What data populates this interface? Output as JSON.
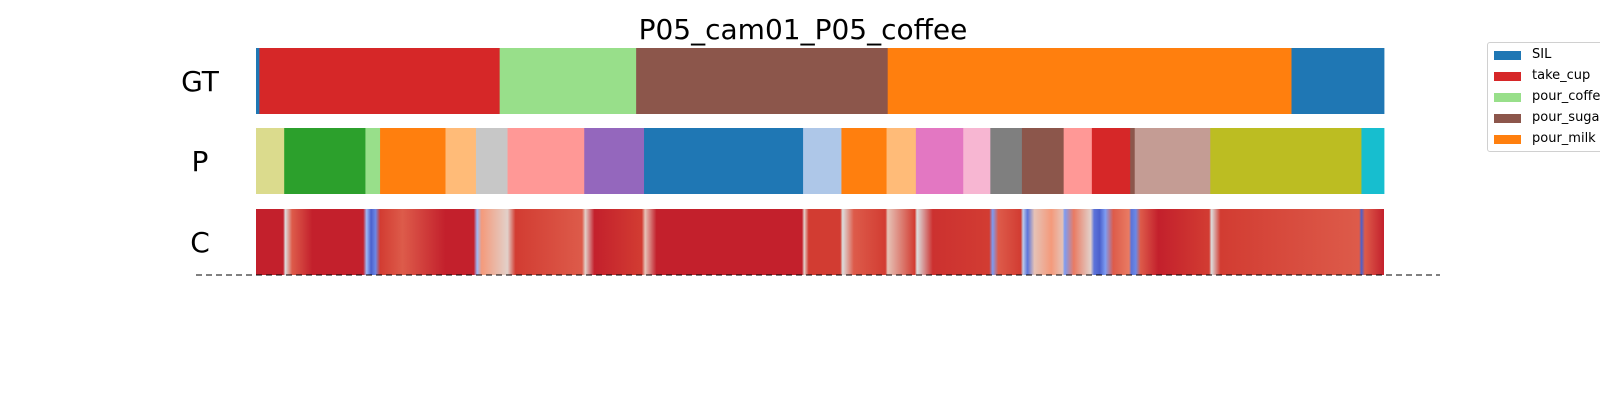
{
  "chart_data": {
    "type": "segmentation_timeline",
    "title": "P05_cam01_P05_coffee",
    "rows": [
      {
        "label": "GT",
        "segments": [
          {
            "start": 0.0,
            "end": 0.3,
            "color": "#1f77b4"
          },
          {
            "start": 0.3,
            "end": 21.6,
            "color": "#d62728"
          },
          {
            "start": 21.6,
            "end": 33.7,
            "color": "#98df8a"
          },
          {
            "start": 33.7,
            "end": 56.0,
            "color": "#8c564b"
          },
          {
            "start": 56.0,
            "end": 91.8,
            "color": "#ff7f0e"
          },
          {
            "start": 91.8,
            "end": 100.0,
            "color": "#1f77b4"
          }
        ]
      },
      {
        "label": "P",
        "segments": [
          {
            "start": 0.0,
            "end": 2.5,
            "color": "#dbdb8d"
          },
          {
            "start": 2.5,
            "end": 9.7,
            "color": "#2ca02c"
          },
          {
            "start": 9.7,
            "end": 11.0,
            "color": "#98df8a"
          },
          {
            "start": 11.0,
            "end": 16.8,
            "color": "#ff7f0e"
          },
          {
            "start": 16.8,
            "end": 19.5,
            "color": "#ffbb78"
          },
          {
            "start": 19.5,
            "end": 22.3,
            "color": "#c7c7c7"
          },
          {
            "start": 22.3,
            "end": 29.1,
            "color": "#ff9896"
          },
          {
            "start": 29.1,
            "end": 34.4,
            "color": "#9467bd"
          },
          {
            "start": 34.4,
            "end": 48.5,
            "color": "#1f77b4"
          },
          {
            "start": 48.5,
            "end": 51.9,
            "color": "#aec7e8"
          },
          {
            "start": 51.9,
            "end": 55.9,
            "color": "#ff7f0e"
          },
          {
            "start": 55.9,
            "end": 58.5,
            "color": "#ffbb78"
          },
          {
            "start": 58.5,
            "end": 62.7,
            "color": "#e377c2"
          },
          {
            "start": 62.7,
            "end": 65.1,
            "color": "#f7b6d2"
          },
          {
            "start": 65.1,
            "end": 67.9,
            "color": "#7f7f7f"
          },
          {
            "start": 67.9,
            "end": 71.6,
            "color": "#8c564b"
          },
          {
            "start": 71.6,
            "end": 74.1,
            "color": "#ff9896"
          },
          {
            "start": 74.1,
            "end": 77.5,
            "color": "#d62728"
          },
          {
            "start": 77.5,
            "end": 77.9,
            "color": "#8c564b"
          },
          {
            "start": 77.9,
            "end": 84.6,
            "color": "#c49c94"
          },
          {
            "start": 84.6,
            "end": 98.0,
            "color": "#bcbd22"
          },
          {
            "start": 98.0,
            "end": 100.0,
            "color": "#17becf"
          }
        ]
      },
      {
        "label": "C",
        "colormap": "coolwarm",
        "confidence": [
          {
            "t": 0.0,
            "v": 0.95
          },
          {
            "t": 2.4,
            "v": 0.95
          },
          {
            "t": 2.6,
            "v": 0.5
          },
          {
            "t": 3.2,
            "v": 0.85
          },
          {
            "t": 5.0,
            "v": 0.95
          },
          {
            "t": 9.5,
            "v": 0.95
          },
          {
            "t": 9.8,
            "v": 0.3
          },
          {
            "t": 10.2,
            "v": 0.05
          },
          {
            "t": 10.6,
            "v": 0.15
          },
          {
            "t": 11.0,
            "v": 0.9
          },
          {
            "t": 13.0,
            "v": 0.85
          },
          {
            "t": 16.8,
            "v": 0.95
          },
          {
            "t": 19.3,
            "v": 0.95
          },
          {
            "t": 19.6,
            "v": 0.3
          },
          {
            "t": 20.0,
            "v": 0.75
          },
          {
            "t": 22.3,
            "v": 0.55
          },
          {
            "t": 23.0,
            "v": 0.9
          },
          {
            "t": 28.9,
            "v": 0.85
          },
          {
            "t": 29.2,
            "v": 0.55
          },
          {
            "t": 30.0,
            "v": 0.95
          },
          {
            "t": 34.2,
            "v": 0.9
          },
          {
            "t": 34.5,
            "v": 0.6
          },
          {
            "t": 35.5,
            "v": 0.95
          },
          {
            "t": 48.4,
            "v": 0.95
          },
          {
            "t": 48.6,
            "v": 0.55
          },
          {
            "t": 49.0,
            "v": 0.9
          },
          {
            "t": 51.8,
            "v": 0.9
          },
          {
            "t": 52.0,
            "v": 0.5
          },
          {
            "t": 53.0,
            "v": 0.85
          },
          {
            "t": 55.8,
            "v": 0.9
          },
          {
            "t": 56.0,
            "v": 0.6
          },
          {
            "t": 58.4,
            "v": 0.9
          },
          {
            "t": 58.6,
            "v": 0.5
          },
          {
            "t": 60.0,
            "v": 0.92
          },
          {
            "t": 65.0,
            "v": 0.9
          },
          {
            "t": 65.3,
            "v": 0.2
          },
          {
            "t": 65.8,
            "v": 0.85
          },
          {
            "t": 67.8,
            "v": 0.9
          },
          {
            "t": 68.0,
            "v": 0.4
          },
          {
            "t": 68.4,
            "v": 0.1
          },
          {
            "t": 69.0,
            "v": 0.6
          },
          {
            "t": 70.5,
            "v": 0.75
          },
          {
            "t": 71.5,
            "v": 0.6
          },
          {
            "t": 71.7,
            "v": 0.2
          },
          {
            "t": 72.5,
            "v": 0.8
          },
          {
            "t": 74.0,
            "v": 0.55
          },
          {
            "t": 74.3,
            "v": 0.1
          },
          {
            "t": 74.8,
            "v": 0.05
          },
          {
            "t": 75.3,
            "v": 0.2
          },
          {
            "t": 76.0,
            "v": 0.85
          },
          {
            "t": 77.4,
            "v": 0.8
          },
          {
            "t": 77.6,
            "v": 0.1
          },
          {
            "t": 78.0,
            "v": 0.15
          },
          {
            "t": 78.4,
            "v": 0.85
          },
          {
            "t": 80.0,
            "v": 0.95
          },
          {
            "t": 84.5,
            "v": 0.9
          },
          {
            "t": 84.7,
            "v": 0.5
          },
          {
            "t": 85.5,
            "v": 0.9
          },
          {
            "t": 97.8,
            "v": 0.85
          },
          {
            "t": 98.0,
            "v": 0.05
          },
          {
            "t": 98.3,
            "v": 0.85
          },
          {
            "t": 100.0,
            "v": 0.95
          }
        ]
      }
    ],
    "legend": [
      {
        "label": "SIL",
        "color": "#1f77b4"
      },
      {
        "label": "take_cup",
        "color": "#d62728"
      },
      {
        "label": "pour_coffee",
        "color": "#98df8a"
      },
      {
        "label": "pour_sugar",
        "color": "#8c564b"
      },
      {
        "label": "pour_milk",
        "color": "#ff7f0e"
      }
    ],
    "baseline": "dashed"
  }
}
